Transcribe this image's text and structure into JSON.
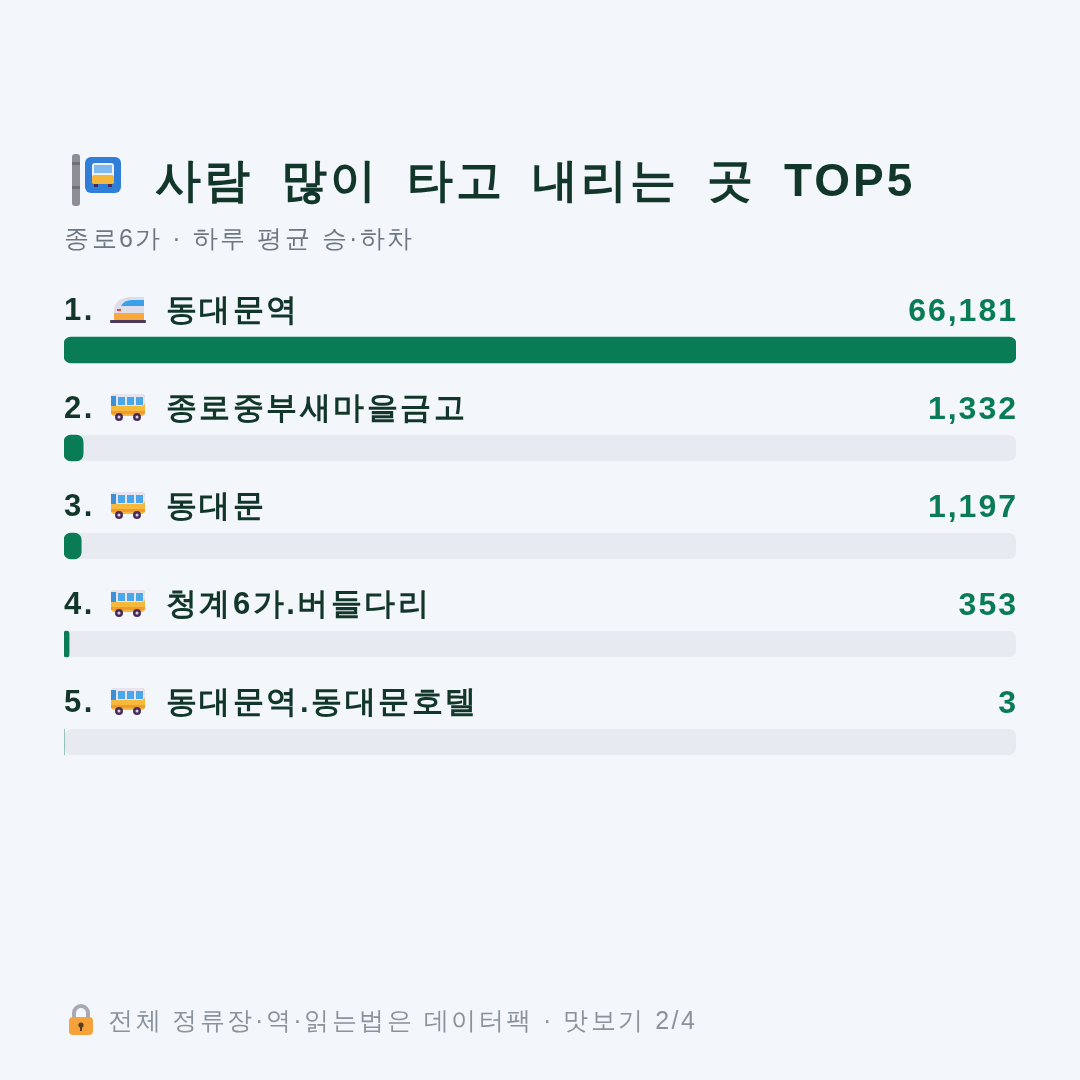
{
  "chart_data": {
    "type": "bar",
    "orientation": "horizontal",
    "title": "사람 많이 타고 내리는 곳 TOP5",
    "subtitle": "종로6가 · 하루 평균 승·하차",
    "categories": [
      "1. 동대문역",
      "2. 종로중부새마을금고",
      "3. 동대문",
      "4. 청계6가.버들다리",
      "5. 동대문역.동대문호텔"
    ],
    "values": [
      66181,
      1332,
      1197,
      353,
      3
    ],
    "color": "#0a7c55",
    "value_labels": [
      "66,181",
      "1,332",
      "1,197",
      "353",
      "3"
    ],
    "xlim": [
      0,
      66181
    ],
    "tick_labels": "y",
    "annotations": [
      "전체 정류장·역·읽는법은 데이터팩 · 맛보기 2/4"
    ]
  }
}
